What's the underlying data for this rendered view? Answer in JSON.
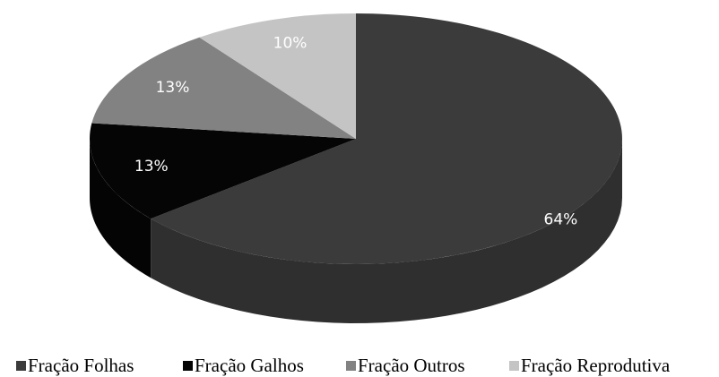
{
  "chart_data": {
    "type": "pie3d",
    "categories": [
      "Fração Folhas",
      "Fração Galhos",
      "Fração Outros",
      "Fração Reprodutiva"
    ],
    "values": [
      64,
      13,
      13,
      10
    ],
    "value_labels": [
      "64%",
      "13%",
      "13%",
      "10%"
    ],
    "colors": [
      "#3b3b3b",
      "#050505",
      "#828282",
      "#c4c4c4"
    ],
    "legend": "bottom"
  }
}
